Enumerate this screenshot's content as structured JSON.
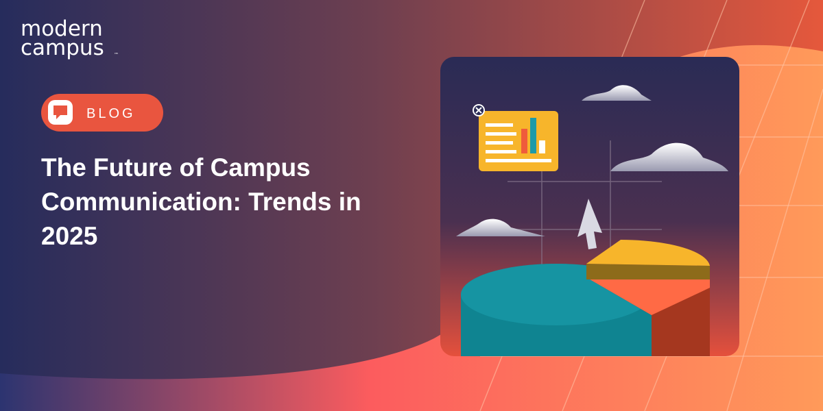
{
  "logo": {
    "lines": [
      "modern",
      "campus"
    ],
    "mark": "™"
  },
  "badge": {
    "label": "BLOG"
  },
  "title": {
    "lines": [
      "The Future of Campus",
      "Communication: Trends in",
      "2025"
    ]
  }
}
